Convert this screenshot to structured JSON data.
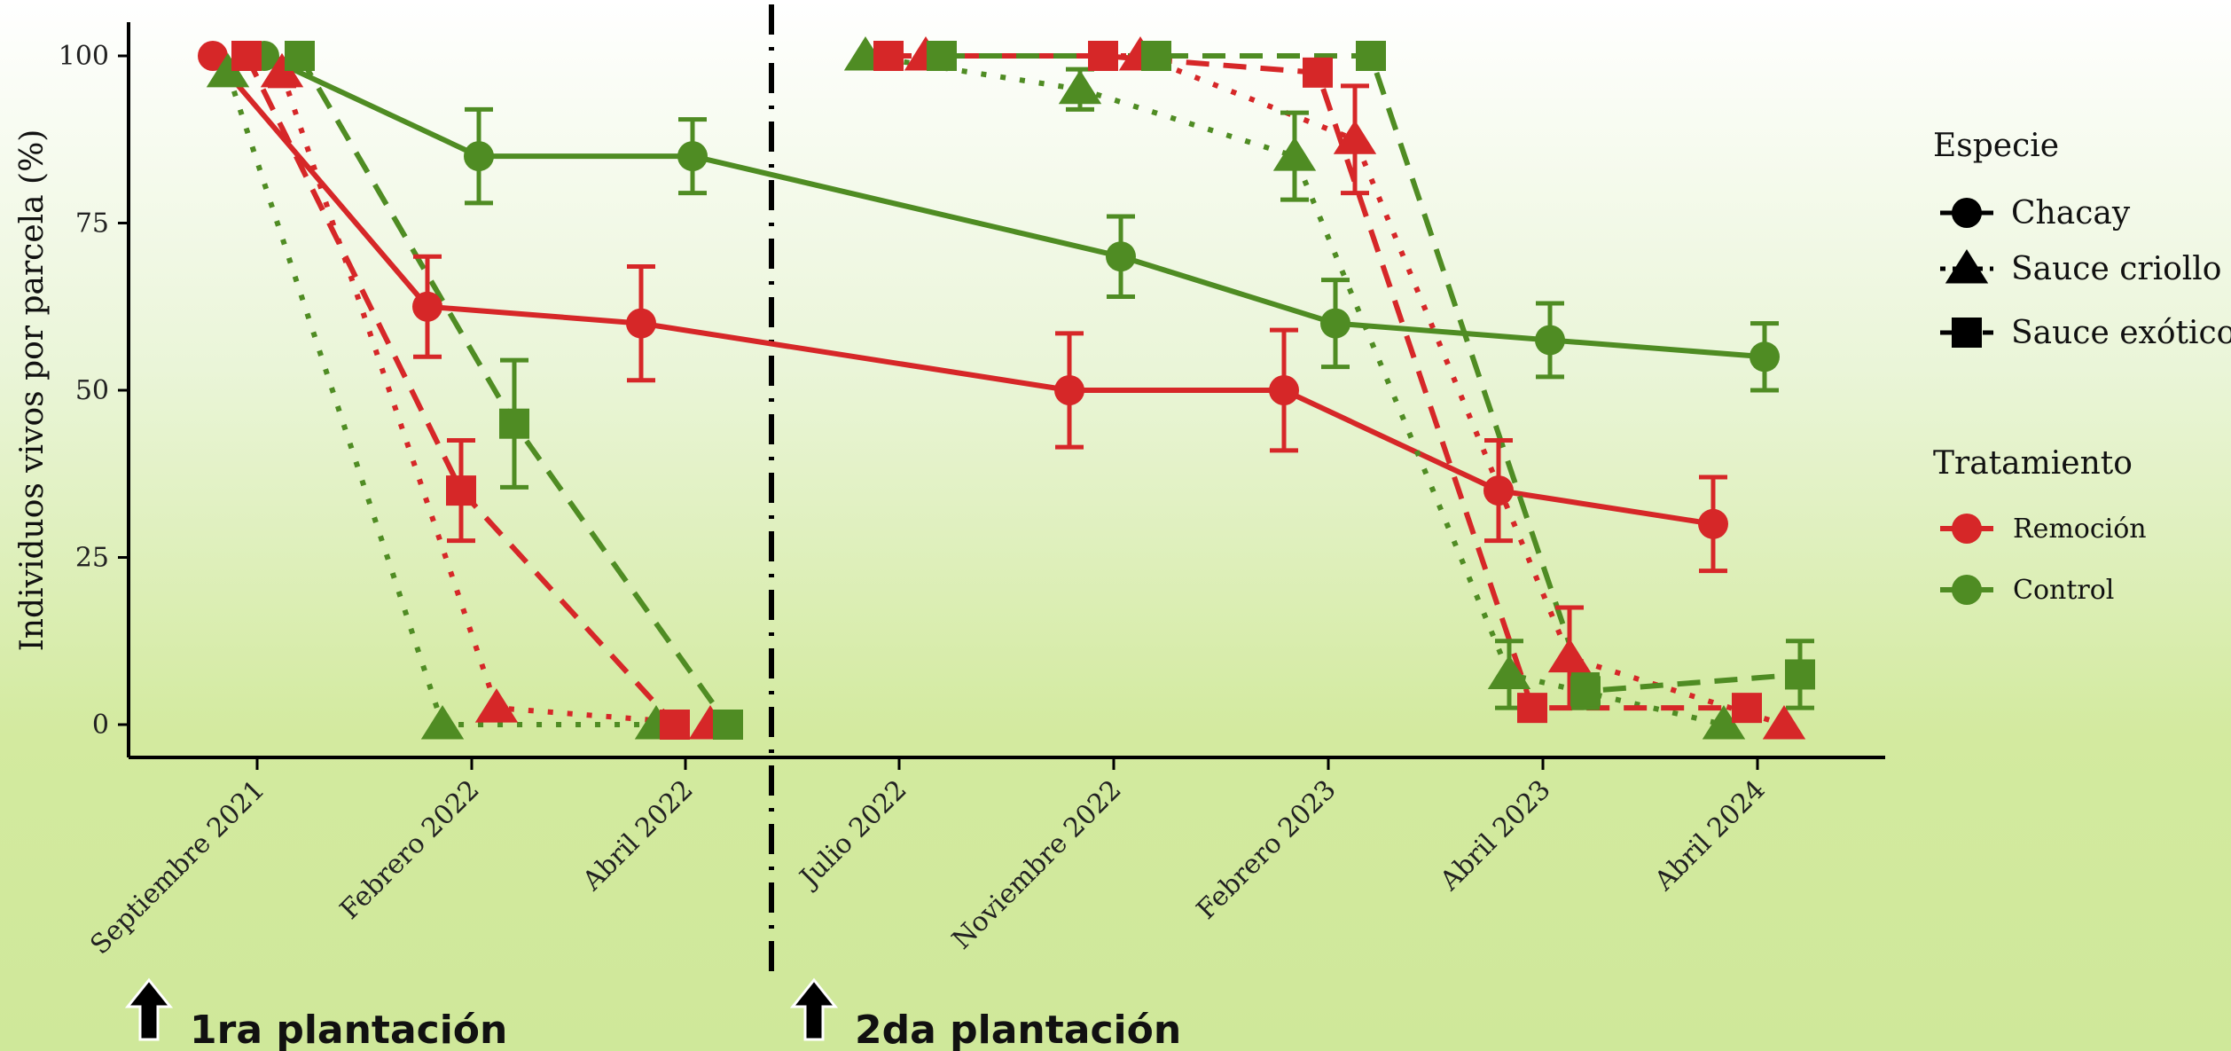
{
  "chart_data": {
    "type": "line",
    "ylabel": "Individuos vivos por parcela (%)",
    "xlabel": "",
    "categories": [
      "Septiembre 2021",
      "Febrero 2022",
      "Abril 2022",
      "Julio 2022",
      "Noviembre 2022",
      "Febrero 2023",
      "Abril 2023",
      "Abril 2024"
    ],
    "yticks": [
      0,
      25,
      50,
      75,
      100
    ],
    "ylim": [
      -5,
      105
    ],
    "grid": false,
    "legend_position": "right",
    "legends": {
      "species": {
        "title": "Especie",
        "items": [
          {
            "label": "Chacay",
            "shape": "circle",
            "linetype": "solid"
          },
          {
            "label": "Sauce criollo",
            "shape": "triangle",
            "linetype": "dotted"
          },
          {
            "label": "Sauce exótico",
            "shape": "square",
            "linetype": "dashed"
          }
        ]
      },
      "treatment": {
        "title": "Tratamiento",
        "items": [
          {
            "label": "Remoción",
            "color": "#d62728"
          },
          {
            "label": "Control",
            "color": "#4f8c23"
          }
        ]
      }
    },
    "colors": {
      "Remoción": "#d62728",
      "Control": "#4f8c23",
      "axis": "#000000"
    },
    "series": [
      {
        "species": "Chacay",
        "treatment": "Remoción",
        "segment": 1,
        "points": [
          {
            "x": 0,
            "y": 100,
            "err": 0
          },
          {
            "x": 1,
            "y": 62.5,
            "err": 7.5
          },
          {
            "x": 2,
            "y": 60,
            "err": 8.5
          },
          {
            "x": 4,
            "y": 50,
            "err": 8.5
          },
          {
            "x": 5,
            "y": 50,
            "err": 9
          },
          {
            "x": 6,
            "y": 35,
            "err": 7.5
          },
          {
            "x": 7,
            "y": 30,
            "err": 7
          }
        ]
      },
      {
        "species": "Chacay",
        "treatment": "Control",
        "segment": 1,
        "points": [
          {
            "x": 0,
            "y": 100,
            "err": 0
          },
          {
            "x": 1,
            "y": 85,
            "err": 7
          },
          {
            "x": 2,
            "y": 85,
            "err": 5.5
          },
          {
            "x": 4,
            "y": 70,
            "err": 6
          },
          {
            "x": 5,
            "y": 60,
            "err": 6.5
          },
          {
            "x": 6,
            "y": 57.5,
            "err": 5.5
          },
          {
            "x": 7,
            "y": 55,
            "err": 5
          }
        ]
      },
      {
        "species": "Sauce criollo",
        "treatment": "Remoción",
        "segment": 1,
        "points": [
          {
            "x": 0,
            "y": 97.5,
            "err": 2
          },
          {
            "x": 1,
            "y": 2.5,
            "err": 0
          },
          {
            "x": 2,
            "y": 0,
            "err": 0
          }
        ]
      },
      {
        "species": "Sauce criollo",
        "treatment": "Control",
        "segment": 1,
        "points": [
          {
            "x": 0,
            "y": 97.5,
            "err": 0
          },
          {
            "x": 1,
            "y": 0,
            "err": 0
          },
          {
            "x": 2,
            "y": 0,
            "err": 0
          }
        ]
      },
      {
        "species": "Sauce exótico",
        "treatment": "Remoción",
        "segment": 1,
        "points": [
          {
            "x": 0,
            "y": 100,
            "err": 0
          },
          {
            "x": 1,
            "y": 35,
            "err": 7.5
          },
          {
            "x": 2,
            "y": 0,
            "err": 0
          }
        ]
      },
      {
        "species": "Sauce exótico",
        "treatment": "Control",
        "segment": 1,
        "points": [
          {
            "x": 0,
            "y": 100,
            "err": 0
          },
          {
            "x": 1,
            "y": 45,
            "err": 9.5
          },
          {
            "x": 2,
            "y": 0,
            "err": 0
          }
        ]
      },
      {
        "species": "Sauce criollo",
        "treatment": "Remoción",
        "segment": 2,
        "points": [
          {
            "x": 3,
            "y": 100,
            "err": 0
          },
          {
            "x": 4,
            "y": 100,
            "err": 0
          },
          {
            "x": 5,
            "y": 87.5,
            "err": 8
          },
          {
            "x": 6,
            "y": 10,
            "err": 7.5
          },
          {
            "x": 7,
            "y": 0,
            "err": 0
          }
        ]
      },
      {
        "species": "Sauce criollo",
        "treatment": "Control",
        "segment": 2,
        "points": [
          {
            "x": 3,
            "y": 100,
            "err": 0
          },
          {
            "x": 4,
            "y": 95,
            "err": 3
          },
          {
            "x": 5,
            "y": 85,
            "err": 6.5
          },
          {
            "x": 6,
            "y": 7.5,
            "err": 5
          },
          {
            "x": 7,
            "y": 0,
            "err": 0
          }
        ]
      },
      {
        "species": "Sauce exótico",
        "treatment": "Remoción",
        "segment": 2,
        "points": [
          {
            "x": 3,
            "y": 100,
            "err": 0
          },
          {
            "x": 4,
            "y": 100,
            "err": 0
          },
          {
            "x": 5,
            "y": 97.5,
            "err": 0
          },
          {
            "x": 6,
            "y": 2.5,
            "err": 0
          },
          {
            "x": 7,
            "y": 2.5,
            "err": 0
          }
        ]
      },
      {
        "species": "Sauce exótico",
        "treatment": "Control",
        "segment": 2,
        "points": [
          {
            "x": 3,
            "y": 100,
            "err": 0
          },
          {
            "x": 4,
            "y": 100,
            "err": 0
          },
          {
            "x": 5,
            "y": 100,
            "err": 0
          },
          {
            "x": 6,
            "y": 5,
            "err": 2.5
          },
          {
            "x": 7,
            "y": 7.5,
            "err": 5
          }
        ]
      }
    ],
    "annotations": [
      {
        "text": "1ra plantación",
        "at_category": "Septiembre 2021"
      },
      {
        "text": "2da plantación",
        "at_category": "Julio 2022"
      }
    ]
  }
}
